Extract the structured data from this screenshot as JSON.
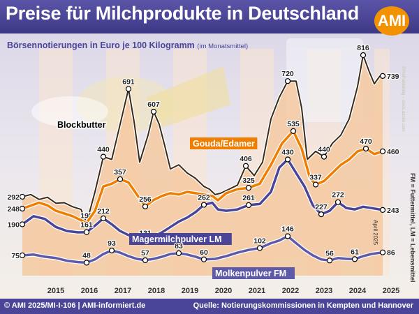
{
  "title": "Preise für Milchprodukte in Deutschland",
  "subtitle": "Börsennotierungen in Euro je 100 Kilogramm",
  "subtitle_note": "(im Monatsmittel)",
  "logo": "AMI",
  "copyright_vertical": "©ProPublishing – stock.adobe.com",
  "footer_left": "© AMI 2025/MI-I-106 | AMI-informiert.de",
  "footer_right": "Quelle: Notierungskommissionen in Kempten und Hannover",
  "side_note": "FM = Futtermittel, LM = Lebensmittel",
  "date_note": "April 2025",
  "colors": {
    "header_bg": "#4a4596",
    "blockbutter_fill": "#f4c9a0",
    "gouda_line": "#ef7d00",
    "magermilch_line": "#4a4596",
    "molken_line": "#5f5aa8",
    "year_band": "#fbe6cf",
    "logo": "#f39200"
  },
  "chart_data": {
    "type": "line",
    "title": "Preise für Milchprodukte in Deutschland",
    "subtitle": "Börsennotierungen in Euro je 100 Kilogramm (im Monatsmittel)",
    "xlabel": "",
    "ylabel": "",
    "x_range": [
      "2014-07",
      "2025-04"
    ],
    "x_ticks": [
      "2015",
      "2016",
      "2017",
      "2018",
      "2019",
      "2020",
      "2021",
      "2022",
      "2023",
      "2024",
      "2025"
    ],
    "ylim": [
      0,
      860
    ],
    "grid": false,
    "series": [
      {
        "name": "Blockbutter",
        "points": [
          [
            "2014-07",
            292
          ],
          [
            "2014-10",
            300
          ],
          [
            "2015-01",
            282
          ],
          [
            "2015-04",
            290
          ],
          [
            "2015-07",
            268
          ],
          [
            "2015-10",
            270
          ],
          [
            "2016-01",
            255
          ],
          [
            "2016-04",
            245
          ],
          [
            "2016-06",
            195
          ],
          [
            "2016-09",
            310
          ],
          [
            "2016-12",
            440
          ],
          [
            "2017-03",
            430
          ],
          [
            "2017-06",
            560
          ],
          [
            "2017-09",
            691
          ],
          [
            "2017-11",
            570
          ],
          [
            "2018-01",
            420
          ],
          [
            "2018-04",
            520
          ],
          [
            "2018-06",
            607
          ],
          [
            "2018-08",
            560
          ],
          [
            "2018-10",
            480
          ],
          [
            "2018-12",
            395
          ],
          [
            "2019-03",
            410
          ],
          [
            "2019-06",
            380
          ],
          [
            "2019-09",
            360
          ],
          [
            "2019-12",
            330
          ],
          [
            "2020-02",
            320
          ],
          [
            "2020-04",
            300
          ],
          [
            "2020-06",
            305
          ],
          [
            "2020-09",
            320
          ],
          [
            "2020-12",
            335
          ],
          [
            "2021-03",
            406
          ],
          [
            "2021-06",
            370
          ],
          [
            "2021-09",
            420
          ],
          [
            "2021-12",
            580
          ],
          [
            "2022-03",
            660
          ],
          [
            "2022-06",
            720
          ],
          [
            "2022-09",
            720
          ],
          [
            "2022-11",
            620
          ],
          [
            "2023-01",
            430
          ],
          [
            "2023-04",
            460
          ],
          [
            "2023-07",
            440
          ],
          [
            "2023-10",
            490
          ],
          [
            "2024-01",
            520
          ],
          [
            "2024-04",
            580
          ],
          [
            "2024-07",
            700
          ],
          [
            "2024-09",
            816
          ],
          [
            "2024-11",
            760
          ],
          [
            "2025-01",
            710
          ],
          [
            "2025-03",
            739
          ],
          [
            "2025-04",
            739
          ]
        ],
        "labels": [
          [
            "2014-07",
            292
          ],
          [
            "2016-06",
            195
          ],
          [
            "2016-12",
            440
          ],
          [
            "2017-09",
            691
          ],
          [
            "2018-06",
            607
          ],
          [
            "2021-03",
            406
          ],
          [
            "2022-06",
            720
          ],
          [
            "2023-07",
            440
          ],
          [
            "2024-09",
            816
          ],
          [
            "2025-04",
            739
          ]
        ]
      },
      {
        "name": "Gouda/Edamer",
        "points": [
          [
            "2014-07",
            248
          ],
          [
            "2015-01",
            270
          ],
          [
            "2015-04",
            260
          ],
          [
            "2015-07",
            240
          ],
          [
            "2015-10",
            230
          ],
          [
            "2016-01",
            220
          ],
          [
            "2016-06",
            195
          ],
          [
            "2016-09",
            240
          ],
          [
            "2016-12",
            330
          ],
          [
            "2017-03",
            340
          ],
          [
            "2017-06",
            357
          ],
          [
            "2017-09",
            345
          ],
          [
            "2017-12",
            300
          ],
          [
            "2018-03",
            256
          ],
          [
            "2018-06",
            280
          ],
          [
            "2018-09",
            295
          ],
          [
            "2018-12",
            305
          ],
          [
            "2019-03",
            300
          ],
          [
            "2019-06",
            310
          ],
          [
            "2019-09",
            305
          ],
          [
            "2019-12",
            300
          ],
          [
            "2020-03",
            295
          ],
          [
            "2020-05",
            279
          ],
          [
            "2020-08",
            305
          ],
          [
            "2020-12",
            320
          ],
          [
            "2021-04",
            325
          ],
          [
            "2021-08",
            340
          ],
          [
            "2021-12",
            410
          ],
          [
            "2022-04",
            490
          ],
          [
            "2022-08",
            535
          ],
          [
            "2022-11",
            470
          ],
          [
            "2023-02",
            360
          ],
          [
            "2023-04",
            337
          ],
          [
            "2023-07",
            350
          ],
          [
            "2023-10",
            380
          ],
          [
            "2024-01",
            410
          ],
          [
            "2024-04",
            430
          ],
          [
            "2024-07",
            460
          ],
          [
            "2024-10",
            470
          ],
          [
            "2025-01",
            450
          ],
          [
            "2025-04",
            460
          ]
        ],
        "labels": [
          [
            "2014-07",
            248
          ],
          [
            "2017-06",
            357
          ],
          [
            "2018-03",
            256
          ],
          [
            "2021-04",
            325
          ],
          [
            "2022-08",
            535
          ],
          [
            "2023-04",
            337
          ],
          [
            "2024-10",
            470
          ],
          [
            "2025-04",
            460
          ]
        ]
      },
      {
        "name": "Magermilchpulver LM",
        "points": [
          [
            "2014-07",
            190
          ],
          [
            "2014-11",
            220
          ],
          [
            "2015-03",
            210
          ],
          [
            "2015-07",
            180
          ],
          [
            "2015-11",
            165
          ],
          [
            "2016-03",
            160
          ],
          [
            "2016-06",
            161
          ],
          [
            "2016-09",
            185
          ],
          [
            "2016-12",
            212
          ],
          [
            "2017-03",
            190
          ],
          [
            "2017-06",
            165
          ],
          [
            "2017-09",
            150
          ],
          [
            "2017-12",
            140
          ],
          [
            "2018-03",
            131
          ],
          [
            "2018-06",
            145
          ],
          [
            "2018-09",
            160
          ],
          [
            "2018-12",
            180
          ],
          [
            "2019-03",
            200
          ],
          [
            "2019-06",
            215
          ],
          [
            "2019-09",
            235
          ],
          [
            "2019-12",
            262
          ],
          [
            "2020-03",
            270
          ],
          [
            "2020-05",
            245
          ],
          [
            "2020-08",
            240
          ],
          [
            "2020-12",
            245
          ],
          [
            "2021-04",
            261
          ],
          [
            "2021-08",
            265
          ],
          [
            "2021-12",
            310
          ],
          [
            "2022-03",
            400
          ],
          [
            "2022-06",
            430
          ],
          [
            "2022-09",
            380
          ],
          [
            "2022-12",
            330
          ],
          [
            "2023-03",
            260
          ],
          [
            "2023-06",
            227
          ],
          [
            "2023-09",
            240
          ],
          [
            "2023-12",
            272
          ],
          [
            "2024-03",
            250
          ],
          [
            "2024-06",
            245
          ],
          [
            "2024-09",
            255
          ],
          [
            "2024-12",
            250
          ],
          [
            "2025-04",
            243
          ]
        ],
        "labels": [
          [
            "2014-07",
            190
          ],
          [
            "2016-06",
            161
          ],
          [
            "2016-12",
            212
          ],
          [
            "2018-03",
            131
          ],
          [
            "2019-12",
            262
          ],
          [
            "2021-04",
            261
          ],
          [
            "2022-06",
            430
          ],
          [
            "2023-06",
            227
          ],
          [
            "2023-12",
            272
          ],
          [
            "2025-04",
            243
          ]
        ]
      },
      {
        "name": "Molkenpulver FM",
        "points": [
          [
            "2014-07",
            75
          ],
          [
            "2014-11",
            78
          ],
          [
            "2015-03",
            70
          ],
          [
            "2015-07",
            65
          ],
          [
            "2015-11",
            55
          ],
          [
            "2016-03",
            50
          ],
          [
            "2016-06",
            48
          ],
          [
            "2016-09",
            60
          ],
          [
            "2016-12",
            80
          ],
          [
            "2017-03",
            93
          ],
          [
            "2017-06",
            85
          ],
          [
            "2017-09",
            72
          ],
          [
            "2017-12",
            62
          ],
          [
            "2018-03",
            57
          ],
          [
            "2018-06",
            62
          ],
          [
            "2018-09",
            70
          ],
          [
            "2018-12",
            80
          ],
          [
            "2019-03",
            83
          ],
          [
            "2019-06",
            78
          ],
          [
            "2019-09",
            70
          ],
          [
            "2019-12",
            60
          ],
          [
            "2020-04",
            62
          ],
          [
            "2020-08",
            72
          ],
          [
            "2020-12",
            85
          ],
          [
            "2021-04",
            95
          ],
          [
            "2021-08",
            102
          ],
          [
            "2021-12",
            120
          ],
          [
            "2022-03",
            130
          ],
          [
            "2022-06",
            146
          ],
          [
            "2022-09",
            120
          ],
          [
            "2022-12",
            95
          ],
          [
            "2023-03",
            75
          ],
          [
            "2023-06",
            60
          ],
          [
            "2023-09",
            56
          ],
          [
            "2023-12",
            65
          ],
          [
            "2024-03",
            62
          ],
          [
            "2024-06",
            61
          ],
          [
            "2024-09",
            72
          ],
          [
            "2024-12",
            80
          ],
          [
            "2025-04",
            86
          ]
        ],
        "labels": [
          [
            "2014-07",
            75
          ],
          [
            "2016-06",
            48
          ],
          [
            "2017-03",
            93
          ],
          [
            "2018-03",
            57
          ],
          [
            "2019-03",
            83
          ],
          [
            "2019-12",
            60
          ],
          [
            "2021-08",
            102
          ],
          [
            "2022-06",
            146
          ],
          [
            "2023-09",
            56
          ],
          [
            "2024-06",
            61
          ],
          [
            "2025-04",
            86
          ]
        ]
      }
    ]
  }
}
